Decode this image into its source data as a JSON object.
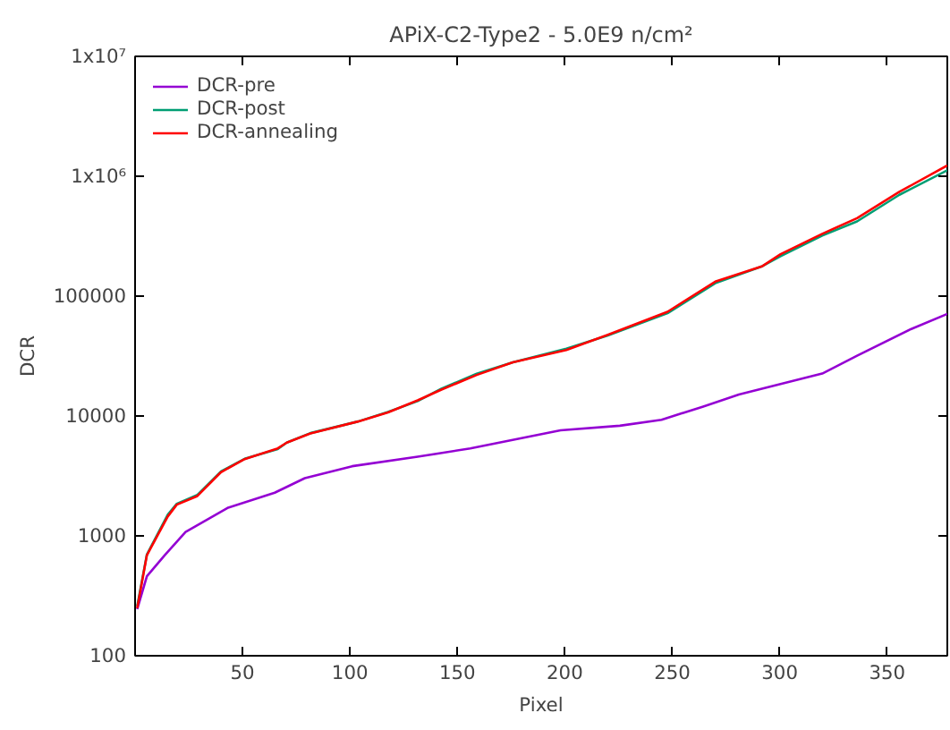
{
  "chart_data": {
    "type": "line",
    "title": "APiX-C2-Type2 - 5.0E9 n/cm²",
    "xlabel": "Pixel",
    "ylabel": "DCR",
    "log": "y",
    "legend": "top left",
    "grid": false,
    "marker": "none",
    "line_style": "solid",
    "xlim": [
      0,
      378
    ],
    "xticks": [
      50,
      100,
      150,
      200,
      250,
      300,
      350
    ],
    "ylim": [
      100,
      10000000
    ],
    "yticks": [
      {
        "value": 100,
        "label": "100"
      },
      {
        "value": 1000,
        "label": "1000"
      },
      {
        "value": 10000,
        "label": "10000"
      },
      {
        "value": 100000,
        "label": "100000"
      },
      {
        "value": 1000000,
        "label": "1x10⁶"
      },
      {
        "value": 10000000,
        "label": "1x10⁷"
      }
    ],
    "series": [
      {
        "name": "DCR-pre",
        "color": "#9400d3",
        "x": [
          1,
          5.5,
          13.8,
          23.5,
          43,
          65,
          79,
          101,
          131.5,
          156,
          198,
          225.6,
          245,
          264.4,
          281,
          319.8,
          336,
          361,
          378
        ],
        "values": [
          245,
          460,
          690,
          1080,
          1710,
          2290,
          3030,
          3810,
          4570,
          5370,
          7590,
          8300,
          9300,
          12000,
          15100,
          22600,
          31800,
          53000,
          71000
        ]
      },
      {
        "name": "DCR-post",
        "color": "#009e73",
        "x": [
          1,
          5.5,
          15.2,
          19.4,
          29,
          40,
          51,
          66.4,
          70.6,
          81.6,
          103.8,
          117.7,
          131.5,
          142.6,
          159,
          175.8,
          200.7,
          220,
          247.8,
          270,
          292,
          300.4,
          319.8,
          336,
          355.7,
          378
        ],
        "values": [
          260,
          700,
          1500,
          1850,
          2200,
          3450,
          4400,
          5300,
          6000,
          7200,
          9000,
          10800,
          13300,
          16900,
          22500,
          28000,
          36500,
          47000,
          72000,
          128000,
          178000,
          215000,
          320000,
          420000,
          700000,
          1120000
        ]
      },
      {
        "name": "DCR-annealing",
        "color": "#ff0000",
        "x": [
          1,
          5.5,
          15.2,
          19.4,
          29,
          40,
          51,
          66.4,
          70.6,
          81.6,
          103.8,
          117.7,
          131.5,
          142.6,
          159,
          175.8,
          200.7,
          220,
          247.8,
          270,
          292,
          300.4,
          319.8,
          336,
          355.7,
          378
        ],
        "values": [
          250,
          690,
          1450,
          1820,
          2150,
          3400,
          4370,
          5370,
          6000,
          7160,
          9000,
          10700,
          13500,
          16600,
          22000,
          28000,
          35500,
          47600,
          74000,
          132000,
          178000,
          224000,
          331000,
          447000,
          741000,
          1230000
        ]
      }
    ]
  }
}
